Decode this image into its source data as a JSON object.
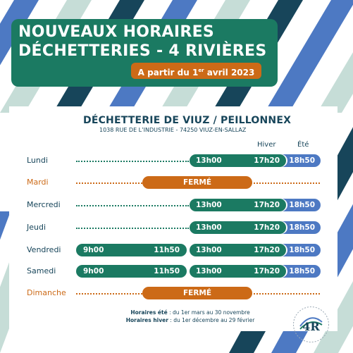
{
  "title": {
    "line1": "NOUVEAUX HORAIRES",
    "line2": "DÉCHETTERIES - 4 RIVIÈRES",
    "subtitle_pre": "A partir du 1",
    "subtitle_sup": "er",
    "subtitle_post": " avril 2023"
  },
  "site": {
    "name": "DÉCHETTERIE DE VIUZ / PEILLONNEX",
    "address": "1038 RUE DE L’INDUSTRIE - 74250 VIUZ-EN-SALLAZ"
  },
  "columns": {
    "winter": "Hiver",
    "summer": "Été"
  },
  "days": [
    {
      "day": "Lundi",
      "closed": false,
      "am": null,
      "pm_start": "13h00",
      "pm_end_winter": "17h20",
      "pm_end_summer": "18h50"
    },
    {
      "day": "Mardi",
      "closed": true,
      "closed_label": "FERMÉ"
    },
    {
      "day": "Mercredi",
      "closed": false,
      "am": null,
      "pm_start": "13h00",
      "pm_end_winter": "17h20",
      "pm_end_summer": "18h50"
    },
    {
      "day": "Jeudi",
      "closed": false,
      "am": null,
      "pm_start": "13h00",
      "pm_end_winter": "17h20",
      "pm_end_summer": "18h50"
    },
    {
      "day": "Vendredi",
      "closed": false,
      "am": {
        "start": "9h00",
        "end": "11h50"
      },
      "pm_start": "13h00",
      "pm_end_winter": "17h20",
      "pm_end_summer": "18h50"
    },
    {
      "day": "Samedi",
      "closed": false,
      "am": {
        "start": "9h00",
        "end": "11h50"
      },
      "pm_start": "13h00",
      "pm_end_winter": "17h20",
      "pm_end_summer": "18h50"
    },
    {
      "day": "Dimanche",
      "closed": true,
      "closed_label": "FERMÉ"
    }
  ],
  "notes": {
    "summer_label": "Horaires été",
    "summer_text": " : du 1er mars au 30 novembre",
    "winter_label": "Horaires hiver",
    "winter_text": " : du 1er décembre au 29 février"
  },
  "colors": {
    "green": "#1b7a62",
    "blue": "#4d79c3",
    "orange": "#cc6a17",
    "navy": "#17455a"
  },
  "logo": {
    "text": "4R"
  }
}
